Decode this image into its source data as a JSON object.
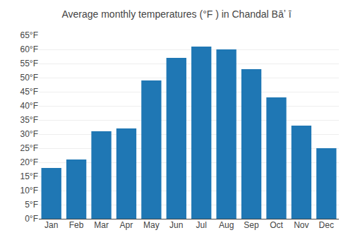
{
  "chart_data": {
    "type": "bar",
    "title": "Average monthly temperatures (°F ) in Chandal Bāʼ ī",
    "categories": [
      "Jan",
      "Feb",
      "Mar",
      "Apr",
      "May",
      "Jun",
      "Jul",
      "Aug",
      "Sep",
      "Oct",
      "Nov",
      "Dec"
    ],
    "values": [
      18,
      21,
      31,
      32,
      49,
      57,
      61,
      60,
      53,
      43,
      33,
      25
    ],
    "ylim": [
      0,
      65
    ],
    "yticks": [
      {
        "value": 0,
        "label": "0°F"
      },
      {
        "value": 5,
        "label": "5°F"
      },
      {
        "value": 10,
        "label": "10°F"
      },
      {
        "value": 15,
        "label": "15°F"
      },
      {
        "value": 20,
        "label": "20°F"
      },
      {
        "value": 25,
        "label": "25°F"
      },
      {
        "value": 30,
        "label": "30°F"
      },
      {
        "value": 35,
        "label": "35°F"
      },
      {
        "value": 40,
        "label": "40°F"
      },
      {
        "value": 45,
        "label": "45°F"
      },
      {
        "value": 50,
        "label": "50°F"
      },
      {
        "value": 55,
        "label": "55°F"
      },
      {
        "value": 60,
        "label": "60°F"
      },
      {
        "value": 65,
        "label": "65°F"
      }
    ],
    "grid": true
  }
}
